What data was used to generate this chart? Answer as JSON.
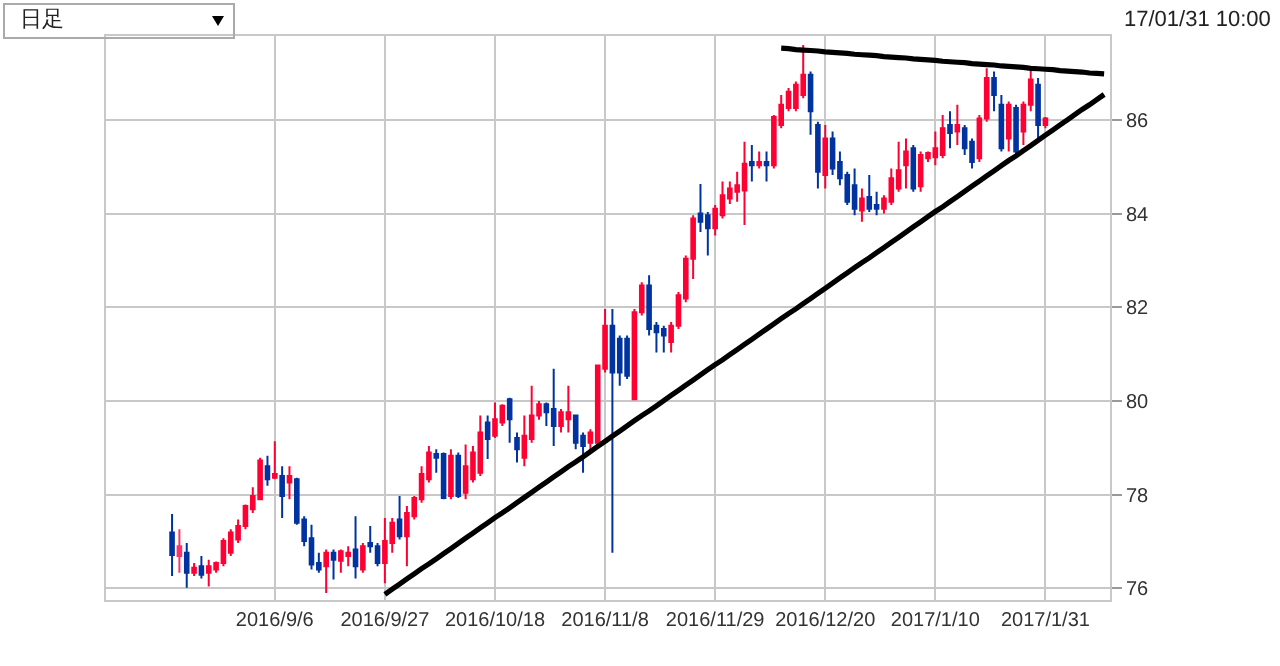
{
  "chart_data": {
    "type": "candlestick",
    "annotations": [
      "日足",
      "17/01/31 10:00"
    ],
    "categories": [
      null,
      null,
      null,
      null,
      null,
      null,
      null,
      null,
      null,
      null,
      null,
      null,
      null,
      null,
      "2016/9/6",
      null,
      null,
      null,
      null,
      null,
      null,
      null,
      null,
      null,
      null,
      null,
      null,
      null,
      null,
      "2016/9/27",
      null,
      null,
      null,
      null,
      null,
      null,
      null,
      null,
      null,
      null,
      null,
      null,
      null,
      null,
      "2016/10/18",
      null,
      null,
      null,
      null,
      null,
      null,
      null,
      null,
      null,
      null,
      null,
      null,
      null,
      null,
      "2016/11/8",
      null,
      null,
      null,
      null,
      null,
      null,
      null,
      null,
      null,
      null,
      null,
      null,
      null,
      null,
      "2016/11/29",
      null,
      null,
      null,
      null,
      null,
      null,
      null,
      null,
      null,
      null,
      null,
      null,
      null,
      null,
      "2016/12/20",
      null,
      null,
      null,
      null,
      null,
      null,
      null,
      null,
      null,
      null,
      null,
      null,
      null,
      null,
      "2017/1/10",
      null,
      null,
      null,
      null,
      null,
      null,
      null,
      null,
      null,
      null,
      null,
      null,
      null,
      null,
      "2017/1/31",
      null,
      null,
      null,
      null,
      null,
      null,
      null,
      null
    ],
    "ohlc": [
      [
        77.19,
        77.59,
        76.26,
        76.71
      ],
      [
        76.69,
        77.26,
        76.33,
        76.9
      ],
      [
        76.76,
        76.97,
        76.01,
        76.33
      ],
      [
        76.33,
        76.54,
        76.26,
        76.44
      ],
      [
        76.47,
        76.69,
        76.21,
        76.29
      ],
      [
        76.33,
        76.61,
        76.04,
        76.47
      ],
      [
        76.4,
        76.57,
        76.33,
        76.54
      ],
      [
        76.54,
        77.07,
        76.47,
        77.01
      ],
      [
        76.76,
        77.26,
        76.69,
        77.19
      ],
      [
        77.04,
        77.47,
        76.97,
        77.33
      ],
      [
        77.33,
        77.79,
        77.26,
        77.76
      ],
      [
        77.69,
        78.16,
        77.61,
        77.97
      ],
      [
        77.9,
        78.79,
        77.9,
        78.73
      ],
      [
        78.61,
        78.83,
        78.19,
        78.33
      ],
      [
        78.36,
        79.14,
        78.33,
        78.44
      ],
      [
        78.4,
        78.61,
        77.5,
        77.97
      ],
      [
        78.26,
        78.61,
        77.9,
        78.4
      ],
      [
        78.33,
        78.36,
        77.36,
        77.4
      ],
      [
        77.47,
        77.54,
        76.9,
        77.01
      ],
      [
        77.07,
        77.36,
        76.4,
        76.51
      ],
      [
        76.54,
        76.76,
        76.33,
        76.4
      ],
      [
        76.47,
        76.83,
        75.9,
        76.76
      ],
      [
        76.76,
        76.83,
        76.19,
        76.61
      ],
      [
        76.59,
        76.83,
        76.33,
        76.79
      ],
      [
        76.69,
        76.9,
        76.47,
        76.76
      ],
      [
        76.83,
        77.54,
        76.21,
        76.47
      ],
      [
        76.4,
        76.97,
        76.33,
        76.9
      ],
      [
        76.97,
        77.33,
        76.76,
        76.9
      ],
      [
        76.9,
        76.97,
        76.47,
        76.54
      ],
      [
        76.54,
        77.5,
        76.11,
        77.01
      ],
      [
        76.97,
        77.5,
        76.76,
        77.4
      ],
      [
        77.47,
        77.97,
        77.04,
        77.11
      ],
      [
        77.11,
        77.76,
        76.47,
        77.61
      ],
      [
        77.54,
        77.97,
        77.47,
        77.93
      ],
      [
        77.9,
        78.61,
        77.83,
        78.44
      ],
      [
        78.33,
        79.04,
        78.26,
        78.9
      ],
      [
        78.87,
        78.97,
        78.47,
        78.79
      ],
      [
        78.87,
        78.9,
        77.9,
        77.93
      ],
      [
        77.97,
        78.97,
        77.9,
        78.83
      ],
      [
        78.83,
        78.9,
        77.93,
        77.97
      ],
      [
        78.04,
        79.07,
        77.9,
        78.61
      ],
      [
        78.33,
        79.04,
        78.26,
        78.9
      ],
      [
        78.47,
        79.69,
        78.4,
        79.33
      ],
      [
        79.54,
        79.69,
        78.76,
        79.19
      ],
      [
        79.26,
        79.97,
        79.21,
        79.61
      ],
      [
        79.54,
        79.93,
        79.47,
        79.9
      ],
      [
        80.04,
        80.07,
        79.11,
        79.61
      ],
      [
        79.21,
        79.33,
        78.69,
        78.97
      ],
      [
        78.79,
        79.69,
        78.61,
        79.26
      ],
      [
        79.19,
        80.33,
        79.11,
        79.69
      ],
      [
        79.69,
        80.0,
        79.6,
        79.93
      ],
      [
        79.93,
        79.97,
        79.47,
        79.76
      ],
      [
        79.83,
        80.69,
        79.04,
        79.47
      ],
      [
        79.47,
        79.83,
        79.33,
        79.76
      ],
      [
        79.61,
        80.33,
        79.33,
        79.76
      ],
      [
        79.69,
        79.69,
        78.97,
        79.11
      ],
      [
        79.26,
        79.33,
        78.47,
        79.04
      ],
      [
        79.11,
        79.4,
        78.9,
        79.33
      ],
      [
        79.11,
        80.76,
        79.04,
        80.76
      ],
      [
        80.69,
        81.97,
        80.61,
        81.61
      ],
      [
        81.61,
        81.97,
        76.76,
        80.61
      ],
      [
        81.33,
        81.4,
        80.33,
        80.61
      ],
      [
        81.33,
        81.4,
        80.47,
        80.54
      ],
      [
        80.04,
        81.97,
        80.04,
        81.9
      ],
      [
        81.9,
        82.54,
        81.83,
        82.47
      ],
      [
        82.47,
        82.69,
        81.4,
        81.54
      ],
      [
        81.61,
        81.69,
        81.04,
        81.47
      ],
      [
        81.54,
        81.61,
        81.04,
        81.4
      ],
      [
        81.26,
        81.69,
        81.04,
        81.61
      ],
      [
        81.61,
        82.33,
        81.54,
        82.26
      ],
      [
        82.19,
        83.11,
        82.11,
        83.04
      ],
      [
        83.04,
        83.97,
        82.61,
        83.9
      ],
      [
        84.01,
        84.64,
        83.61,
        83.83
      ],
      [
        83.97,
        84.04,
        83.11,
        83.69
      ],
      [
        83.69,
        84.19,
        83.54,
        84.11
      ],
      [
        83.97,
        84.69,
        83.9,
        84.4
      ],
      [
        84.33,
        84.69,
        84.21,
        84.54
      ],
      [
        84.47,
        84.9,
        84.26,
        84.61
      ],
      [
        84.5,
        85.54,
        83.76,
        85.07
      ],
      [
        85.11,
        85.47,
        84.69,
        85.04
      ],
      [
        85.04,
        85.33,
        84.97,
        85.11
      ],
      [
        85.11,
        85.33,
        84.69,
        85.04
      ],
      [
        85.04,
        86.11,
        84.97,
        86.07
      ],
      [
        85.9,
        86.54,
        85.83,
        86.33
      ],
      [
        86.26,
        86.69,
        86.19,
        86.61
      ],
      [
        86.26,
        86.83,
        86.19,
        86.76
      ],
      [
        86.54,
        87.61,
        86.47,
        86.97
      ],
      [
        86.97,
        87.04,
        85.69,
        86.19
      ],
      [
        85.9,
        85.97,
        84.54,
        84.9
      ],
      [
        84.83,
        85.9,
        84.54,
        85.61
      ],
      [
        85.61,
        85.76,
        84.83,
        84.97
      ],
      [
        85.11,
        85.33,
        84.61,
        84.76
      ],
      [
        84.83,
        84.9,
        84.19,
        84.26
      ],
      [
        84.61,
        84.97,
        83.97,
        84.11
      ],
      [
        84.07,
        84.54,
        83.83,
        84.33
      ],
      [
        84.36,
        84.83,
        84.04,
        84.11
      ],
      [
        84.19,
        84.47,
        83.97,
        84.11
      ],
      [
        84.11,
        84.4,
        84.01,
        84.33
      ],
      [
        84.26,
        84.97,
        84.19,
        84.76
      ],
      [
        84.54,
        85.54,
        84.47,
        84.93
      ],
      [
        85.04,
        85.61,
        84.54,
        85.33
      ],
      [
        85.4,
        85.47,
        84.47,
        84.54
      ],
      [
        84.59,
        85.33,
        84.47,
        85.26
      ],
      [
        85.19,
        85.33,
        85.11,
        85.3
      ],
      [
        85.21,
        85.76,
        85.04,
        85.4
      ],
      [
        85.26,
        86.11,
        85.19,
        85.83
      ],
      [
        85.9,
        86.19,
        85.4,
        85.73
      ],
      [
        85.76,
        86.33,
        85.47,
        85.9
      ],
      [
        85.83,
        85.9,
        85.26,
        85.4
      ],
      [
        85.54,
        85.61,
        84.97,
        85.11
      ],
      [
        85.19,
        86.11,
        85.11,
        86.04
      ],
      [
        86.04,
        87.11,
        85.97,
        86.9
      ],
      [
        86.9,
        87.04,
        86.19,
        86.54
      ],
      [
        86.33,
        86.54,
        85.33,
        85.4
      ],
      [
        85.61,
        86.4,
        85.33,
        86.33
      ],
      [
        86.26,
        86.33,
        85.26,
        85.33
      ],
      [
        85.76,
        86.4,
        85.47,
        86.33
      ],
      [
        86.33,
        87.11,
        86.19,
        86.87
      ],
      [
        86.76,
        86.9,
        85.61,
        85.9
      ],
      [
        85.9,
        86.07,
        85.83,
        86.04
      ],
      null,
      null,
      null,
      null,
      null,
      null,
      null,
      null
    ],
    "colors": [
      "#0033a0",
      "#ff3366",
      "#0033a0",
      "#ff0033",
      "#0033a0",
      "#ff0033",
      "#ff0033",
      "#ff0033",
      "#ff0033",
      "#ff0033",
      "#ff0033",
      "#ff0033",
      "#ff0033",
      "#0033a0",
      "#ff0033",
      "#0033a0",
      "#ff0033",
      "#0033a0",
      "#0033a0",
      "#0033a0",
      "#0033a0",
      "#ff0033",
      "#0033a0",
      "#ff0033",
      "#ff0033",
      "#0033a0",
      "#ff0033",
      "#0033a0",
      "#0033a0",
      "#ff0033",
      "#ff0033",
      "#0033a0",
      "#ff0033",
      "#ff0033",
      "#ff0033",
      "#ff0033",
      "#0033a0",
      "#0033a0",
      "#ff0033",
      "#0033a0",
      "#ff0033",
      "#ff0033",
      "#ff0033",
      "#0033a0",
      "#ff0033",
      "#ff0033",
      "#0033a0",
      "#0033a0",
      "#ff0033",
      "#ff0033",
      "#ff0033",
      "#0033a0",
      "#0033a0",
      "#ff0033",
      "#ff0033",
      "#0033a0",
      "#0033a0",
      "#ff0033",
      "#ff0033",
      "#ff0033",
      "#0033a0",
      "#0033a0",
      "#0033a0",
      "#ff0033",
      "#ff0033",
      "#0033a0",
      "#0033a0",
      "#0033a0",
      "#ff0033",
      "#ff0033",
      "#ff0033",
      "#ff0033",
      "#0033a0",
      "#0033a0",
      "#ff0033",
      "#ff0033",
      "#ff0033",
      "#ff0033",
      "#ff0033",
      "#0033a0",
      "#ff0033",
      "#0033a0",
      "#ff0033",
      "#ff0033",
      "#ff0033",
      "#ff0033",
      "#ff0033",
      "#0033a0",
      "#0033a0",
      "#ff0033",
      "#0033a0",
      "#0033a0",
      "#0033a0",
      "#0033a0",
      "#ff0033",
      "#0033a0",
      "#0033a0",
      "#ff0033",
      "#ff0033",
      "#ff0033",
      "#ff0033",
      "#0033a0",
      "#ff0033",
      "#ff0033",
      "#ff0033",
      "#ff0033",
      "#0033a0",
      "#ff0033",
      "#0033a0",
      "#0033a0",
      "#ff0033",
      "#ff0033",
      "#0033a0",
      "#0033a0",
      "#ff0033",
      "#0033a0",
      "#ff0033",
      "#ff0033",
      "#0033a0",
      "#ff0033",
      null,
      null,
      null,
      null,
      null,
      null,
      null,
      null
    ],
    "series": [
      {
        "type": "line",
        "color": "#000000",
        "values": [
          null,
          null,
          null,
          null,
          null,
          null,
          null,
          null,
          null,
          null,
          null,
          null,
          null,
          null,
          null,
          null,
          null,
          null,
          null,
          null,
          null,
          null,
          null,
          null,
          null,
          null,
          null,
          null,
          null,
          75.87,
          75.98,
          76.09,
          76.2,
          76.31,
          76.42,
          76.52,
          76.63,
          76.74,
          76.85,
          76.96,
          77.07,
          77.18,
          77.29,
          77.4,
          77.51,
          77.61,
          77.72,
          77.83,
          77.94,
          78.05,
          78.16,
          78.27,
          78.38,
          78.49,
          78.6,
          78.7,
          78.81,
          78.92,
          79.03,
          79.14,
          79.25,
          79.36,
          79.47,
          79.58,
          79.69,
          79.79,
          79.9,
          80.01,
          80.12,
          80.23,
          80.34,
          80.45,
          80.56,
          80.67,
          80.78,
          80.88,
          80.99,
          81.1,
          81.21,
          81.32,
          81.43,
          81.54,
          81.65,
          81.76,
          81.87,
          81.97,
          82.08,
          82.19,
          82.3,
          82.41,
          82.52,
          82.63,
          82.74,
          82.85,
          82.96,
          83.06,
          83.17,
          83.28,
          83.39,
          83.5,
          83.61,
          83.72,
          83.83,
          83.94,
          84.05,
          84.15,
          84.26,
          84.37,
          84.48,
          84.59,
          84.7,
          84.81,
          84.92,
          85.03,
          85.14,
          85.24,
          85.35,
          85.46,
          85.57,
          85.68,
          85.79,
          85.9,
          86.01,
          86.12,
          86.23,
          86.33,
          86.44,
          86.55
        ]
      },
      {
        "type": "line",
        "color": "#000000",
        "values": [
          null,
          null,
          null,
          null,
          null,
          null,
          null,
          null,
          null,
          null,
          null,
          null,
          null,
          null,
          null,
          null,
          null,
          null,
          null,
          null,
          null,
          null,
          null,
          null,
          null,
          null,
          null,
          null,
          null,
          null,
          null,
          null,
          null,
          null,
          null,
          null,
          null,
          null,
          null,
          null,
          null,
          null,
          null,
          null,
          null,
          null,
          null,
          null,
          null,
          null,
          null,
          null,
          null,
          null,
          null,
          null,
          null,
          null,
          null,
          null,
          null,
          null,
          null,
          null,
          null,
          null,
          null,
          null,
          null,
          null,
          null,
          null,
          null,
          null,
          null,
          null,
          null,
          null,
          null,
          null,
          null,
          null,
          null,
          87.54,
          87.53,
          87.51,
          87.5,
          87.49,
          87.48,
          87.46,
          87.45,
          87.44,
          87.43,
          87.41,
          87.4,
          87.39,
          87.38,
          87.36,
          87.35,
          87.34,
          87.33,
          87.31,
          87.3,
          87.29,
          87.28,
          87.26,
          87.25,
          87.24,
          87.23,
          87.21,
          87.2,
          87.19,
          87.18,
          87.16,
          87.15,
          87.14,
          87.13,
          87.11,
          87.1,
          87.09,
          87.08,
          87.06,
          87.05,
          87.04,
          87.03,
          87.01,
          87.0,
          86.99
        ]
      }
    ],
    "ylim": [
      75.75,
      87.8
    ],
    "yticks": [
      76,
      78,
      80,
      82,
      84,
      86
    ],
    "grid": true,
    "marker": "none",
    "line_style": "solid"
  }
}
